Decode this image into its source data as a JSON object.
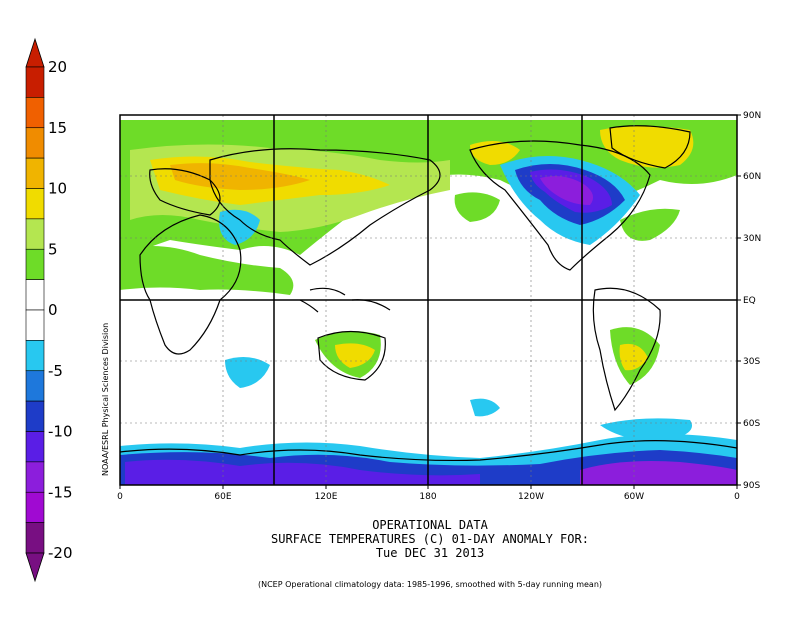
{
  "titles": {
    "line1": "OPERATIONAL DATA",
    "line2": "SURFACE TEMPERATURES (C)   01-DAY ANOMALY FOR:",
    "line3": "Tue DEC 31 2013"
  },
  "footnote": "(NCEP Operational climatology data: 1985-1996, smoothed with 5-day running mean)",
  "credit": "NOAA/ESRL Physical Sciences Division",
  "colorbar": {
    "labels": [
      "20",
      "15",
      "10",
      "5",
      "0",
      "-5",
      "-10",
      "-15",
      "-20"
    ],
    "colors": [
      "#c81e00",
      "#f06000",
      "#f08c00",
      "#f0b400",
      "#f0dc00",
      "#b4e650",
      "#6edc28",
      "#ffffff",
      "#ffffff",
      "#28c8f0",
      "#1e78dc",
      "#1e3cc8",
      "#5a1ee6",
      "#8c1edc",
      "#a00ad2",
      "#780f82"
    ]
  },
  "axes": {
    "x_ticks": [
      "0",
      "60E",
      "120E",
      "180",
      "120W",
      "60W",
      "0"
    ],
    "y_ticks": [
      "90N",
      "60N",
      "30N",
      "EQ",
      "30S",
      "60S",
      "90S"
    ]
  },
  "anomaly_regions": [
    {
      "name": "north-america-cold-core",
      "lon": 275,
      "lat": 52,
      "value": -12
    },
    {
      "name": "north-america-cold",
      "lon": 268,
      "lat": 40,
      "value": -7
    },
    {
      "name": "antarctic-cold",
      "lon": 60,
      "lat": -80,
      "value": -12
    },
    {
      "name": "eurasia-warm",
      "lon": 80,
      "lat": 58,
      "value": 8
    },
    {
      "name": "alaska-warm",
      "lon": 208,
      "lat": 66,
      "value": 8
    },
    {
      "name": "greenland-warm",
      "lon": 315,
      "lat": 72,
      "value": 7
    },
    {
      "name": "australia-warm",
      "lon": 134,
      "lat": -25,
      "value": 7
    }
  ],
  "colors": {
    "frame": "#000000",
    "grid": "#777777",
    "land": "#000000"
  }
}
